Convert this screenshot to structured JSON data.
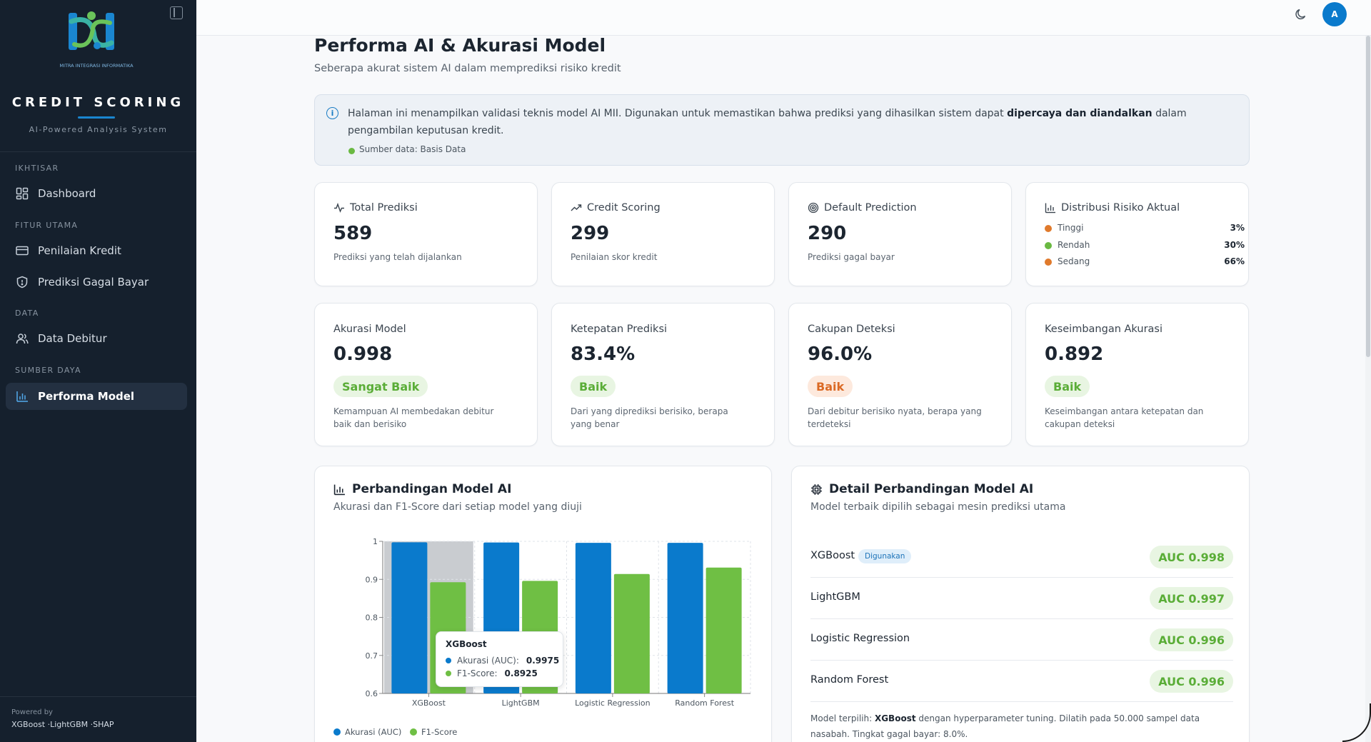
{
  "sidebar": {
    "logo_caption": "MITRA INTEGRASI INFORMATIKA",
    "brand_title": "CREDIT SCORING",
    "brand_subtitle": "AI-Powered Analysis System",
    "sections": [
      {
        "label": "IKHTISAR",
        "items": [
          {
            "label": "Dashboard",
            "icon": "dashboard-grid-icon"
          }
        ]
      },
      {
        "label": "FITUR UTAMA",
        "items": [
          {
            "label": "Penilaian Kredit",
            "icon": "credit-card-icon"
          },
          {
            "label": "Prediksi Gagal Bayar",
            "icon": "shield-icon"
          }
        ]
      },
      {
        "label": "DATA",
        "items": [
          {
            "label": "Data Debitur",
            "icon": "users-icon"
          }
        ]
      },
      {
        "label": "SUMBER DAYA",
        "items": [
          {
            "label": "Performa Model",
            "icon": "bar-chart-icon",
            "active": true
          }
        ]
      }
    ],
    "powered_by": "Powered by",
    "powered_stack": "XGBoost ·LightGBM ·SHAP"
  },
  "topbar": {
    "avatar_initial": "A",
    "theme_icon": "moon-icon"
  },
  "page": {
    "title": "Performa AI & Akurasi Model",
    "subtitle": "Seberapa akurat sistem AI dalam memprediksi risiko kredit"
  },
  "info": {
    "text_before": "Halaman ini menampilkan validasi teknis model AI MII. Digunakan untuk memastikan bahwa prediksi yang dihasilkan sistem dapat ",
    "text_bold": "dipercaya dan diandalkan",
    "text_after": " dalam pengambilan keputusan kredit.",
    "source": "Sumber data: Basis Data"
  },
  "stats": [
    {
      "label": "Total Prediksi",
      "value": "589",
      "desc": "Prediksi yang telah dijalankan",
      "icon": "activity-icon"
    },
    {
      "label": "Credit Scoring",
      "value": "299",
      "desc": "Penilaian skor kredit",
      "icon": "trending-up-icon"
    },
    {
      "label": "Default Prediction",
      "value": "290",
      "desc": "Prediksi gagal bayar",
      "icon": "target-icon"
    }
  ],
  "distribution": {
    "label": "Distribusi Risiko Aktual",
    "icon": "bar-chart-icon",
    "items": [
      {
        "name": "Tinggi",
        "value": "3%",
        "color": "#e07a2c"
      },
      {
        "name": "Rendah",
        "value": "30%",
        "color": "#6ab942"
      },
      {
        "name": "Sedang",
        "value": "66%",
        "color": "#e07a2c"
      }
    ]
  },
  "metrics": [
    {
      "label": "Akurasi Model",
      "value": "0.998",
      "badge": "Sangat Baik",
      "badge_color": "green",
      "desc": "Kemampuan AI membedakan debitur baik dan berisiko"
    },
    {
      "label": "Ketepatan Prediksi",
      "value": "83.4%",
      "badge": "Baik",
      "badge_color": "green",
      "desc": "Dari yang diprediksi berisiko, berapa yang benar"
    },
    {
      "label": "Cakupan Deteksi",
      "value": "96.0%",
      "badge": "Baik",
      "badge_color": "orange",
      "desc": "Dari debitur berisiko nyata, berapa yang terdeteksi"
    },
    {
      "label": "Keseimbangan Akurasi",
      "value": "0.892",
      "badge": "Baik",
      "badge_color": "green",
      "desc": "Keseimbangan antara ketepatan dan cakupan deteksi"
    }
  ],
  "comparison": {
    "title": "Perbandingan Model AI",
    "subtitle": "Akurasi dan F1-Score dari setiap model yang diuji",
    "icon": "bar-chart-icon",
    "tooltip": {
      "title": "XGBoost",
      "rows": [
        {
          "label": "Akurasi (AUC):",
          "value": "0.9975"
        },
        {
          "label": "F1-Score:",
          "value": "0.8925"
        }
      ]
    }
  },
  "chart_data": {
    "type": "bar",
    "categories": [
      "XGBoost",
      "LightGBM",
      "Logistic Regression",
      "Random Forest"
    ],
    "series": [
      {
        "name": "Akurasi (AUC)",
        "values": [
          0.9975,
          0.997,
          0.996,
          0.996
        ],
        "color": "#0a7acc"
      },
      {
        "name": "F1-Score",
        "values": [
          0.8925,
          0.896,
          0.914,
          0.931
        ],
        "color": "#6fbf44"
      }
    ],
    "ylim": [
      0.6,
      1
    ],
    "yticks": [
      "0.6",
      "0.7",
      "0.8",
      "0.9",
      "1"
    ],
    "grid": true,
    "legend": "bottom-left",
    "highlight_category": "XGBoost"
  },
  "detail": {
    "title": "Detail Perbandingan Model AI",
    "subtitle": "Model terbaik dipilih sebagai mesin prediksi utama",
    "icon": "cpu-icon",
    "used_label": "Digunakan",
    "models": [
      {
        "name": "XGBoost",
        "auc": "AUC 0.998",
        "used": true
      },
      {
        "name": "LightGBM",
        "auc": "AUC 0.997"
      },
      {
        "name": "Logistic Regression",
        "auc": "AUC 0.996"
      },
      {
        "name": "Random Forest",
        "auc": "AUC 0.996"
      }
    ],
    "note_prefix": "Model terpilih: ",
    "note_bold": "XGBoost",
    "note_suffix": " dengan hyperparameter tuning. Dilatih pada 50.000 sampel data nasabah. Tingkat gagal bayar: 8.0%."
  }
}
